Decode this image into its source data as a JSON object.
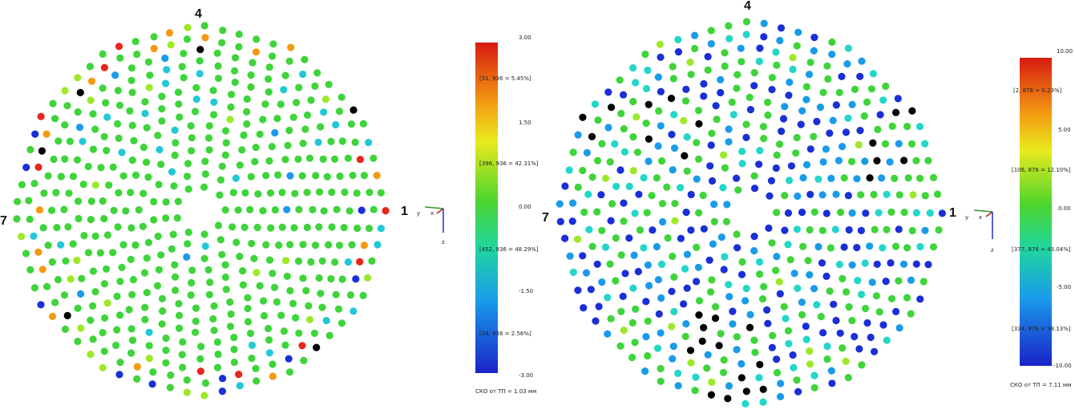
{
  "chart_data": [
    {
      "type": "scatter",
      "title": "",
      "sector_labels": [
        "4",
        "1",
        "7"
      ],
      "colorbar": {
        "max": "3.00",
        "ticks": [
          "3.00",
          "1.50",
          "0.00",
          "-1.50",
          "-3.00"
        ],
        "min": "-3.00",
        "bins": [
          "[51, 936 = 5.45%]",
          "[396, 936 = 42.31%]",
          "[452, 936 = 48.29%]",
          "[24, 936 = 2.56%]"
        ],
        "rms": "СКО от ТП = 1.03 мм"
      },
      "axes_triad": {
        "labels": [
          "y",
          "x",
          "z"
        ]
      },
      "colors": {
        "low": "#1a2fd6",
        "high": "#e8261b",
        "outlier": "#000000",
        "mid": "#3ed43a"
      }
    },
    {
      "type": "scatter",
      "title": "",
      "sector_labels": [
        "4",
        "1",
        "7"
      ],
      "colorbar": {
        "max": "10.00",
        "ticks": [
          "10.00",
          "5.00",
          "0.00",
          "-5.00",
          "-10.00"
        ],
        "min": "-10.00",
        "bins": [
          "[2, 876 = 0.23%]",
          "[106, 876 = 12.10%]",
          "[377, 876 = 43.04%]",
          "[334, 876 = 38.13%]"
        ],
        "rms": "СКО от ТП = 7.11 мм"
      },
      "axes_triad": {
        "labels": [
          "y",
          "x",
          "z"
        ]
      },
      "colors": {
        "low": "#1a2fd6",
        "high": "#e8261b",
        "outlier": "#000000",
        "mid": "#3ed43a"
      }
    }
  ]
}
